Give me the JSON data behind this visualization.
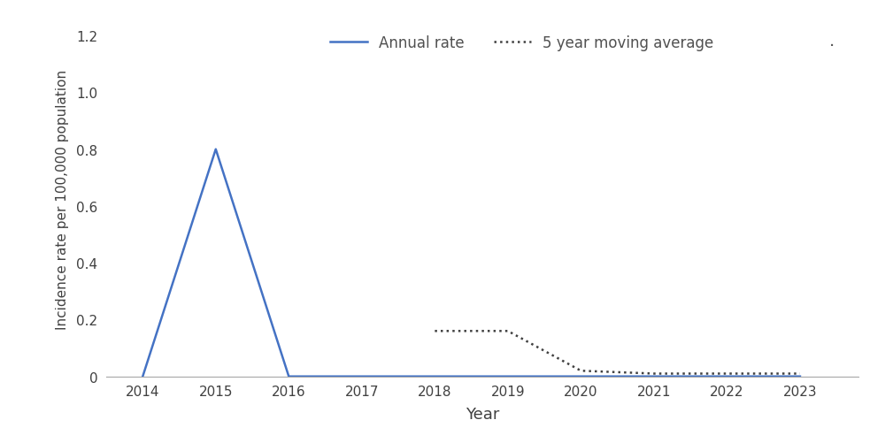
{
  "years_annual": [
    2014,
    2015,
    2016,
    2017,
    2018,
    2019,
    2020,
    2021,
    2022,
    2023
  ],
  "annual_rate": [
    0.0,
    0.8,
    0.0,
    0.0,
    0.0,
    0.0,
    0.0,
    0.0,
    0.0,
    0.0
  ],
  "years_mavg": [
    2018,
    2019,
    2020,
    2021,
    2022,
    2023
  ],
  "mavg_rate": [
    0.16,
    0.16,
    0.02,
    0.01,
    0.01,
    0.01
  ],
  "annual_color": "#4472C4",
  "mavg_color": "#404040",
  "xlabel": "Year",
  "ylabel": "Incidence rate per 100,000 population",
  "xlim": [
    2013.5,
    2023.8
  ],
  "ylim": [
    0,
    1.25
  ],
  "yticks": [
    0,
    0.2,
    0.4,
    0.6,
    0.8,
    1.0,
    1.2
  ],
  "xticks": [
    2014,
    2015,
    2016,
    2017,
    2018,
    2019,
    2020,
    2021,
    2022,
    2023
  ],
  "legend_annual": "Annual rate",
  "legend_mavg": "5 year moving average",
  "bg_color": "#ffffff",
  "annual_linewidth": 1.8,
  "mavg_linewidth": 1.8,
  "axis_color": "#aaaaaa"
}
